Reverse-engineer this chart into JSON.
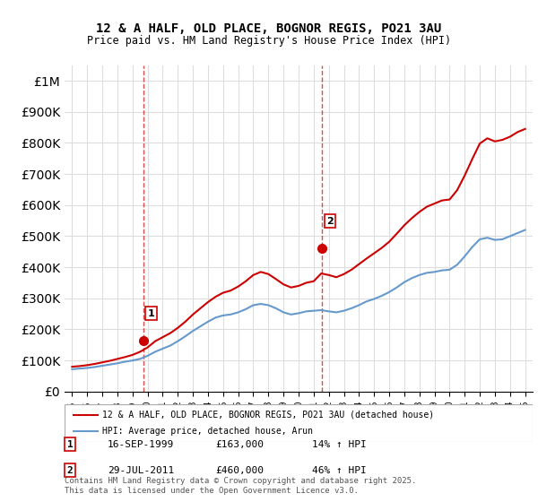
{
  "title": "12 & A HALF, OLD PLACE, BOGNOR REGIS, PO21 3AU",
  "subtitle": "Price paid vs. HM Land Registry's House Price Index (HPI)",
  "legend_line1": "12 & A HALF, OLD PLACE, BOGNOR REGIS, PO21 3AU (detached house)",
  "legend_line2": "HPI: Average price, detached house, Arun",
  "sale1_label": "1",
  "sale1_date": "16-SEP-1999",
  "sale1_price": "£163,000",
  "sale1_hpi": "14% ↑ HPI",
  "sale2_label": "2",
  "sale2_date": "29-JUL-2011",
  "sale2_price": "£460,000",
  "sale2_hpi": "46% ↑ HPI",
  "footer": "Contains HM Land Registry data © Crown copyright and database right 2025.\nThis data is licensed under the Open Government Licence v3.0.",
  "red_color": "#cc0000",
  "blue_color": "#6699cc",
  "sale1_x": 1999.7,
  "sale2_x": 2011.55,
  "ylim_max": 1050000,
  "background_color": "#ffffff",
  "grid_color": "#dddddd",
  "hpi_years": [
    1995,
    1995.5,
    1996,
    1996.5,
    1997,
    1997.5,
    1998,
    1998.5,
    1999,
    1999.5,
    2000,
    2000.5,
    2001,
    2001.5,
    2002,
    2002.5,
    2003,
    2003.5,
    2004,
    2004.5,
    2005,
    2005.5,
    2006,
    2006.5,
    2007,
    2007.5,
    2008,
    2008.5,
    2009,
    2009.5,
    2010,
    2010.5,
    2011,
    2011.5,
    2012,
    2012.5,
    2013,
    2013.5,
    2014,
    2014.5,
    2015,
    2015.5,
    2016,
    2016.5,
    2017,
    2017.5,
    2018,
    2018.5,
    2019,
    2019.5,
    2020,
    2020.5,
    2021,
    2021.5,
    2022,
    2022.5,
    2023,
    2023.5,
    2024,
    2024.5,
    2025
  ],
  "hpi_values": [
    72000,
    74000,
    76000,
    79000,
    83000,
    87000,
    91000,
    96000,
    100000,
    105000,
    115000,
    128000,
    138000,
    148000,
    162000,
    178000,
    195000,
    210000,
    225000,
    238000,
    245000,
    248000,
    255000,
    265000,
    278000,
    282000,
    278000,
    268000,
    255000,
    248000,
    252000,
    258000,
    260000,
    262000,
    258000,
    255000,
    260000,
    268000,
    278000,
    290000,
    298000,
    308000,
    320000,
    335000,
    352000,
    365000,
    375000,
    382000,
    385000,
    390000,
    392000,
    408000,
    435000,
    465000,
    490000,
    495000,
    488000,
    490000,
    500000,
    510000,
    520000
  ],
  "red_years": [
    1995,
    1995.5,
    1996,
    1996.5,
    1997,
    1997.5,
    1998,
    1998.5,
    1999,
    1999.5,
    2000,
    2000.5,
    2001,
    2001.5,
    2002,
    2002.5,
    2003,
    2003.5,
    2004,
    2004.5,
    2005,
    2005.5,
    2006,
    2006.5,
    2007,
    2007.5,
    2008,
    2008.5,
    2009,
    2009.5,
    2010,
    2010.5,
    2011,
    2011.5,
    2012,
    2012.5,
    2013,
    2013.5,
    2014,
    2014.5,
    2015,
    2015.5,
    2016,
    2016.5,
    2017,
    2017.5,
    2018,
    2018.5,
    2019,
    2019.5,
    2020,
    2020.5,
    2021,
    2021.5,
    2022,
    2022.5,
    2023,
    2023.5,
    2024,
    2024.5,
    2025
  ],
  "red_values": [
    80000,
    82000,
    85000,
    89000,
    94000,
    99000,
    105000,
    111000,
    118000,
    128000,
    142000,
    162000,
    175000,
    188000,
    205000,
    225000,
    248000,
    268000,
    288000,
    305000,
    318000,
    325000,
    338000,
    355000,
    375000,
    385000,
    378000,
    362000,
    345000,
    335000,
    340000,
    350000,
    355000,
    380000,
    375000,
    368000,
    378000,
    392000,
    410000,
    428000,
    445000,
    462000,
    482000,
    508000,
    535000,
    558000,
    578000,
    595000,
    605000,
    615000,
    618000,
    648000,
    695000,
    748000,
    798000,
    815000,
    805000,
    810000,
    820000,
    835000,
    845000
  ]
}
